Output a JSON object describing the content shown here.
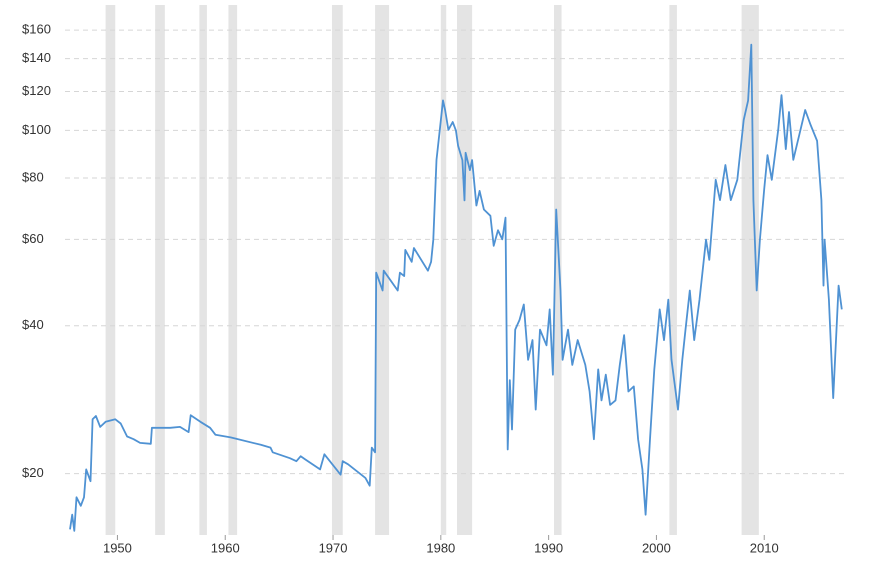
{
  "chart_data": {
    "type": "line",
    "log_scale": true,
    "grid": true,
    "color": "#4f92d3",
    "recession_color": "#e4e4e4",
    "xlim": [
      1945.6,
      2017.4
    ],
    "ylim": [
      15,
      175
    ],
    "xticks": [
      1950,
      1960,
      1970,
      1980,
      1990,
      2000,
      2010
    ],
    "yticks": [
      {
        "value": 20,
        "label": "$20"
      },
      {
        "value": 40,
        "label": "$40"
      },
      {
        "value": 60,
        "label": "$60"
      },
      {
        "value": 80,
        "label": "$80"
      },
      {
        "value": 100,
        "label": "$100"
      },
      {
        "value": 120,
        "label": "$120"
      },
      {
        "value": 140,
        "label": "$140"
      },
      {
        "value": 160,
        "label": "$160"
      }
    ],
    "recessions": [
      [
        1948.9,
        1949.8
      ],
      [
        1953.5,
        1954.4
      ],
      [
        1957.6,
        1958.3
      ],
      [
        1960.3,
        1961.1
      ],
      [
        1969.9,
        1970.9
      ],
      [
        1973.9,
        1975.2
      ],
      [
        1980.0,
        1980.5
      ],
      [
        1981.5,
        1982.9
      ],
      [
        1990.5,
        1991.2
      ],
      [
        2001.2,
        2001.9
      ],
      [
        2007.9,
        2009.5
      ]
    ],
    "x": [
      1945.6,
      1945.8,
      1946.0,
      1946.2,
      1946.6,
      1946.9,
      1947.1,
      1947.5,
      1947.7,
      1948.0,
      1948.4,
      1948.9,
      1949.8,
      1950.3,
      1950.9,
      1951.5,
      1952.1,
      1953.1,
      1953.2,
      1954.9,
      1955.8,
      1956.6,
      1956.8,
      1957.7,
      1958.6,
      1959.1,
      1960.5,
      1963.3,
      1964.2,
      1964.4,
      1966.0,
      1966.6,
      1967.0,
      1967.4,
      1968.8,
      1969.2,
      1970.7,
      1970.9,
      1971.4,
      1973.0,
      1973.4,
      1973.6,
      1973.9,
      1974.0,
      1974.6,
      1974.7,
      1976.0,
      1976.2,
      1976.6,
      1976.7,
      1977.3,
      1977.5,
      1978.8,
      1979.1,
      1979.3,
      1979.6,
      1979.9,
      1980.2,
      1980.4,
      1980.7,
      1981.1,
      1981.4,
      1981.6,
      1982.0,
      1982.2,
      1982.3,
      1982.7,
      1982.9,
      1983.3,
      1983.6,
      1984.0,
      1984.6,
      1984.9,
      1985.3,
      1985.7,
      1986.0,
      1986.2,
      1986.4,
      1986.6,
      1986.9,
      1987.3,
      1987.7,
      1988.1,
      1988.5,
      1988.8,
      1989.2,
      1989.8,
      1990.1,
      1990.4,
      1990.7,
      1991.1,
      1991.3,
      1991.8,
      1992.2,
      1992.7,
      1993.4,
      1993.8,
      1994.2,
      1994.6,
      1994.9,
      1995.3,
      1995.7,
      1996.2,
      1996.6,
      1997.0,
      1997.4,
      1997.9,
      1998.3,
      1998.7,
      1999.0,
      1999.4,
      1999.8,
      2000.3,
      2000.7,
      2001.1,
      2001.4,
      2002.0,
      2002.4,
      2002.7,
      2003.1,
      2003.5,
      2004.0,
      2004.6,
      2004.9,
      2005.5,
      2005.9,
      2006.4,
      2006.9,
      2007.5,
      2008.1,
      2008.5,
      2008.8,
      2009.0,
      2009.3,
      2009.6,
      2010.0,
      2010.3,
      2010.7,
      2011.3,
      2011.6,
      2012.0,
      2012.3,
      2012.7,
      2013.3,
      2013.8,
      2014.3,
      2014.9,
      2015.3,
      2015.5,
      2015.6,
      2016.0,
      2016.4,
      2016.7,
      2016.9,
      2017.2
    ],
    "values": [
      15.4,
      16.5,
      15.3,
      17.9,
      17.2,
      17.9,
      20.4,
      19.3,
      25.8,
      26.2,
      24.9,
      25.5,
      25.8,
      25.3,
      23.8,
      23.5,
      23.1,
      23.0,
      24.8,
      24.8,
      24.9,
      24.3,
      26.3,
      25.5,
      24.8,
      24.0,
      23.7,
      22.9,
      22.6,
      22.1,
      21.5,
      21.2,
      21.7,
      21.4,
      20.4,
      21.9,
      19.9,
      21.2,
      20.9,
      19.6,
      18.9,
      22.6,
      22.1,
      51.3,
      47.2,
      51.8,
      47.2,
      51.3,
      50.5,
      57.1,
      54.0,
      57.6,
      51.8,
      54.0,
      59.9,
      87.1,
      100.2,
      115.1,
      110.0,
      100.2,
      104.0,
      100.0,
      93.0,
      87.0,
      72.0,
      90.0,
      83.0,
      87.0,
      70.3,
      75.3,
      69.0,
      67.0,
      58.2,
      62.6,
      60.0,
      66.4,
      22.4,
      31.0,
      24.6,
      39.3,
      41.1,
      44.2,
      34.1,
      37.4,
      27.0,
      39.3,
      36.5,
      43.2,
      31.8,
      69.0,
      47.2,
      34.1,
      39.3,
      33.3,
      37.4,
      33.3,
      29.4,
      23.5,
      32.6,
      28.2,
      31.8,
      27.6,
      28.2,
      33.3,
      38.3,
      29.4,
      30.1,
      23.5,
      20.4,
      16.5,
      23.5,
      32.6,
      43.2,
      37.4,
      45.2,
      34.1,
      27.0,
      34.1,
      39.3,
      47.2,
      37.4,
      45.2,
      59.9,
      54.5,
      79.3,
      72.1,
      85.0,
      72.1,
      79.3,
      105.0,
      115.0,
      149.4,
      72.1,
      47.2,
      59.9,
      75.9,
      89.0,
      79.3,
      100.2,
      118.0,
      91.6,
      109.0,
      87.1,
      98.9,
      110.0,
      102.6,
      95.2,
      72.1,
      48.3,
      59.9,
      45.2,
      28.5,
      39.3,
      48.3,
      43.2
    ]
  }
}
